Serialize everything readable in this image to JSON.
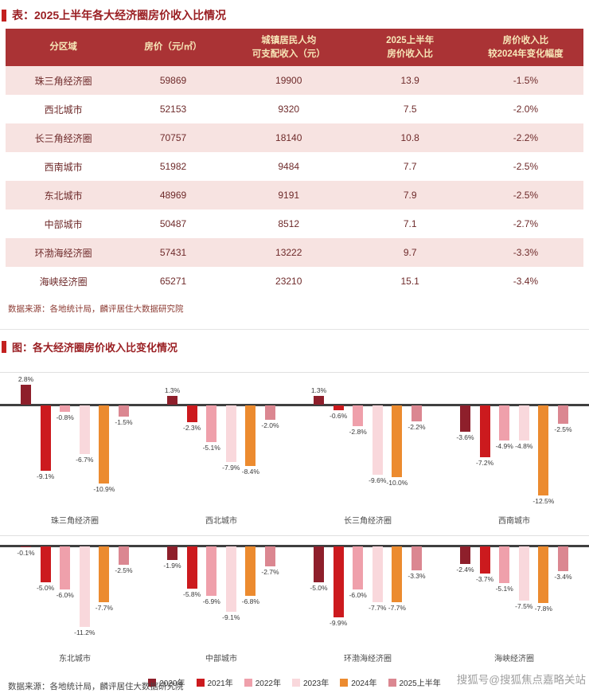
{
  "palette": {
    "accent_red": "#C3201F",
    "title_text": "#9A1F23",
    "table_header_bg": "#AA3335",
    "table_header_text": "#F7E7B8",
    "table_row_alt_bg": "#F7E3E1",
    "table_cell_text": "#6E2A2A",
    "zero_line": "#3F3F3F",
    "watermark_gray": "#A0A0A0"
  },
  "table_section": {
    "title": "表：2025上半年各大经济圈房价收入比情况",
    "columns": [
      "分区域",
      "房价（元/㎡）",
      "城镇居民人均\n可支配收入（元）",
      "2025上半年\n房价收入比",
      "房价收入比\n较2024年变化幅度"
    ],
    "rows": [
      {
        "region": "珠三角经济圈",
        "price": "59869",
        "income": "19900",
        "ratio": "13.9",
        "change": "-1.5%"
      },
      {
        "region": "西北城市",
        "price": "52153",
        "income": "9320",
        "ratio": "7.5",
        "change": "-2.0%"
      },
      {
        "region": "长三角经济圈",
        "price": "70757",
        "income": "18140",
        "ratio": "10.8",
        "change": "-2.2%"
      },
      {
        "region": "西南城市",
        "price": "51982",
        "income": "9484",
        "ratio": "7.7",
        "change": "-2.5%"
      },
      {
        "region": "东北城市",
        "price": "48969",
        "income": "9191",
        "ratio": "7.9",
        "change": "-2.5%"
      },
      {
        "region": "中部城市",
        "price": "50487",
        "income": "8512",
        "ratio": "7.1",
        "change": "-2.7%"
      },
      {
        "region": "环渤海经济圈",
        "price": "57431",
        "income": "13222",
        "ratio": "9.7",
        "change": "-3.3%"
      },
      {
        "region": "海峡经济圈",
        "price": "65271",
        "income": "23210",
        "ratio": "15.1",
        "change": "-3.4%"
      }
    ],
    "source": "数据来源：各地统计局，麟评居住大数据研究院"
  },
  "chart_section": {
    "title": "图：各大经济圈房价收入比变化情况",
    "source": "数据来源：各地统计局，麟评居住大数据研究院"
  },
  "chart_data": {
    "type": "bar",
    "title": "各大经济圈房价收入比变化情况",
    "unit": "%",
    "series_names": [
      "2020年",
      "2021年",
      "2022年",
      "2023年",
      "2024年",
      "2025上半年"
    ],
    "colors": [
      "#8E1F2B",
      "#CC1A1E",
      "#EFA0AB",
      "#F9D8DC",
      "#EC8B2F",
      "#DB8791"
    ],
    "rows": [
      {
        "groups": [
          {
            "category": "珠三角经济圈",
            "values": [
              2.8,
              -9.1,
              -0.8,
              -6.7,
              -10.9,
              -1.5
            ]
          },
          {
            "category": "西北城市",
            "values": [
              1.3,
              -2.3,
              -5.1,
              -7.9,
              -8.4,
              -2.0
            ]
          },
          {
            "category": "长三角经济圈",
            "values": [
              1.3,
              -0.6,
              -2.8,
              -9.6,
              -10.0,
              -2.2
            ]
          },
          {
            "category": "西南城市",
            "values": [
              -3.6,
              -7.2,
              -4.9,
              -4.8,
              -12.5,
              -2.5
            ]
          }
        ]
      },
      {
        "groups": [
          {
            "category": "东北城市",
            "values": [
              -0.1,
              -5.0,
              -6.0,
              -11.2,
              -7.7,
              -2.5
            ]
          },
          {
            "category": "中部城市",
            "values": [
              -1.9,
              -5.8,
              -6.9,
              -9.1,
              -6.8,
              -2.7
            ]
          },
          {
            "category": "环渤海经济圈",
            "values": [
              -5.0,
              -9.9,
              -6.0,
              -7.7,
              -7.7,
              -3.3
            ]
          },
          {
            "category": "海峡经济圈",
            "values": [
              -2.4,
              -3.7,
              -5.1,
              -7.5,
              -7.8,
              -3.4
            ]
          }
        ]
      }
    ],
    "ylim_row1": [
      -13,
      3
    ],
    "ylim_row2": [
      -12,
      1
    ],
    "legend_position": "bottom",
    "grid": false
  },
  "watermark": "搜狐号@搜狐焦点嘉略关站"
}
